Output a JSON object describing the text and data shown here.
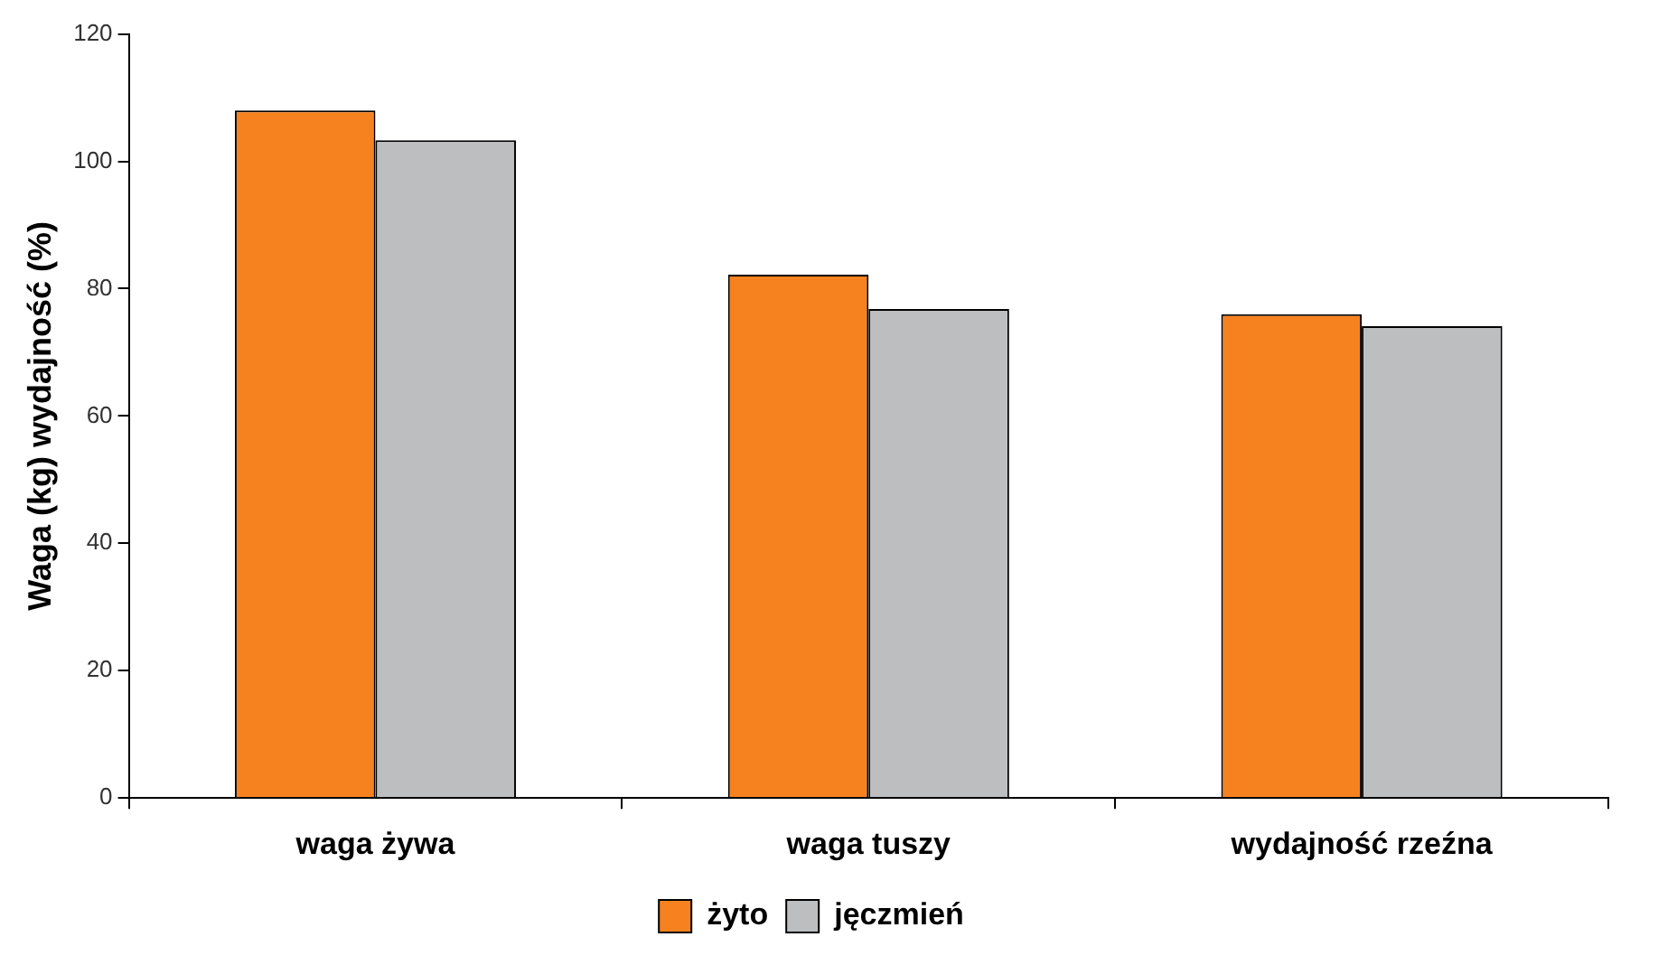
{
  "chart_data": {
    "type": "bar",
    "ylabel": "Waga (kg) wydajność (%)",
    "categories": [
      "waga żywa",
      "waga tuszy",
      "wydajność rzeźna"
    ],
    "series": [
      {
        "name": "żyto",
        "color": "#f5821f",
        "values": [
          108,
          82.2,
          76
        ]
      },
      {
        "name": "jęczmień",
        "color": "#bcbec0",
        "values": [
          103.3,
          76.8,
          74.1
        ]
      }
    ],
    "ylim": [
      0,
      120
    ],
    "yticks": [
      0,
      20,
      40,
      60,
      80,
      100,
      120
    ],
    "grid": false,
    "legend": "bottom"
  }
}
